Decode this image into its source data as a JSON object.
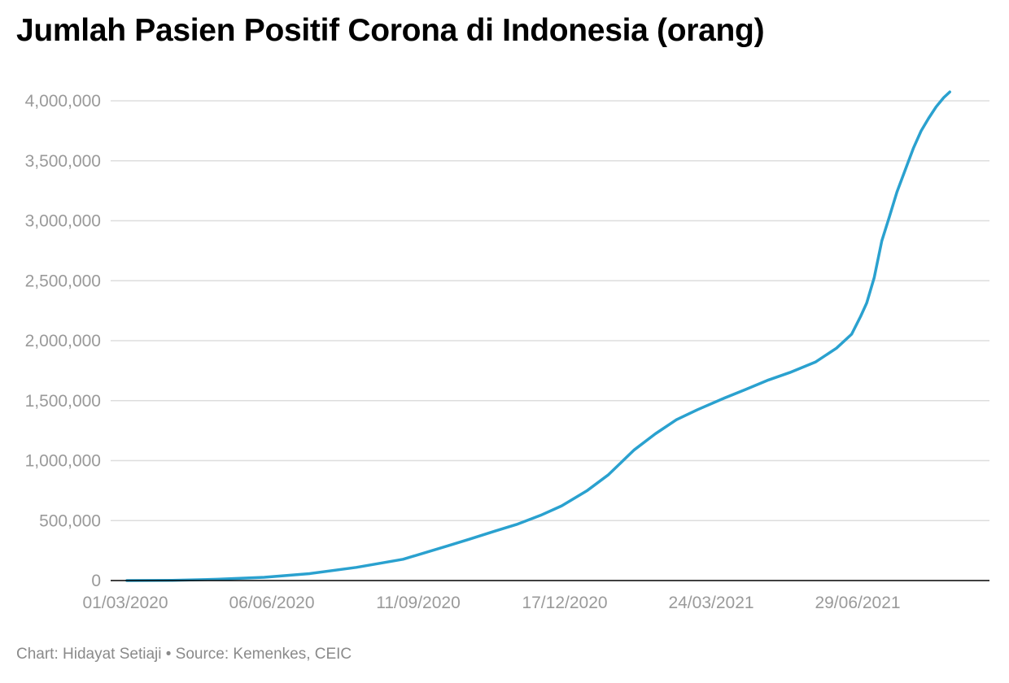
{
  "chart_data": {
    "type": "line",
    "title": "Jumlah Pasien Positif Corona di Indonesia (orang)",
    "xlabel": "",
    "ylabel": "",
    "x_ticks": [
      "01/03/2020",
      "06/06/2020",
      "11/09/2020",
      "17/12/2020",
      "24/03/2021",
      "29/06/2021"
    ],
    "y_ticks": [
      "0",
      "500,000",
      "1,000,000",
      "1,500,000",
      "2,000,000",
      "2,500,000",
      "3,000,000",
      "3,500,000",
      "4,000,000"
    ],
    "ylim": [
      0,
      4000000
    ],
    "xlim": [
      "2020-03-01",
      "2021-08-29"
    ],
    "grid": true,
    "series": [
      {
        "color": "#2aa1cf",
        "points": [
          [
            "2020-03-02",
            2
          ],
          [
            "2020-04-01",
            1677
          ],
          [
            "2020-05-01",
            10551
          ],
          [
            "2020-06-01",
            26940
          ],
          [
            "2020-07-01",
            57770
          ],
          [
            "2020-08-01",
            109936
          ],
          [
            "2020-09-01",
            177571
          ],
          [
            "2020-10-01",
            291182
          ],
          [
            "2020-10-15",
            344749
          ],
          [
            "2020-11-01",
            412784
          ],
          [
            "2020-11-15",
            467113
          ],
          [
            "2020-12-01",
            543975
          ],
          [
            "2020-12-15",
            623309
          ],
          [
            "2021-01-01",
            751270
          ],
          [
            "2021-01-15",
            882418
          ],
          [
            "2021-02-01",
            1089308
          ],
          [
            "2021-02-15",
            1223930
          ],
          [
            "2021-03-01",
            1341314
          ],
          [
            "2021-03-15",
            1425044
          ],
          [
            "2021-04-01",
            1517854
          ],
          [
            "2021-04-15",
            1589359
          ],
          [
            "2021-05-01",
            1672880
          ],
          [
            "2021-05-15",
            1734285
          ],
          [
            "2021-06-01",
            1821703
          ],
          [
            "2021-06-15",
            1937652
          ],
          [
            "2021-06-25",
            2053995
          ],
          [
            "2021-07-01",
            2203108
          ],
          [
            "2021-07-05",
            2313829
          ],
          [
            "2021-07-10",
            2527203
          ],
          [
            "2021-07-15",
            2832755
          ],
          [
            "2021-07-20",
            3033339
          ],
          [
            "2021-07-25",
            3239936
          ],
          [
            "2021-07-31",
            3440396
          ],
          [
            "2021-08-05",
            3607863
          ],
          [
            "2021-08-10",
            3749446
          ],
          [
            "2021-08-15",
            3854354
          ],
          [
            "2021-08-20",
            3950304
          ],
          [
            "2021-08-25",
            4026837
          ],
          [
            "2021-08-29",
            4073831
          ]
        ]
      }
    ]
  },
  "footer": "Chart: Hidayat Setiaji • Source: Kemenkes, CEIC",
  "colors": {
    "line": "#2aa1cf",
    "grid": "#dddddd",
    "axis": "#000000",
    "tick_text": "#9a9a9a",
    "footer_text": "#8a8a8a"
  }
}
